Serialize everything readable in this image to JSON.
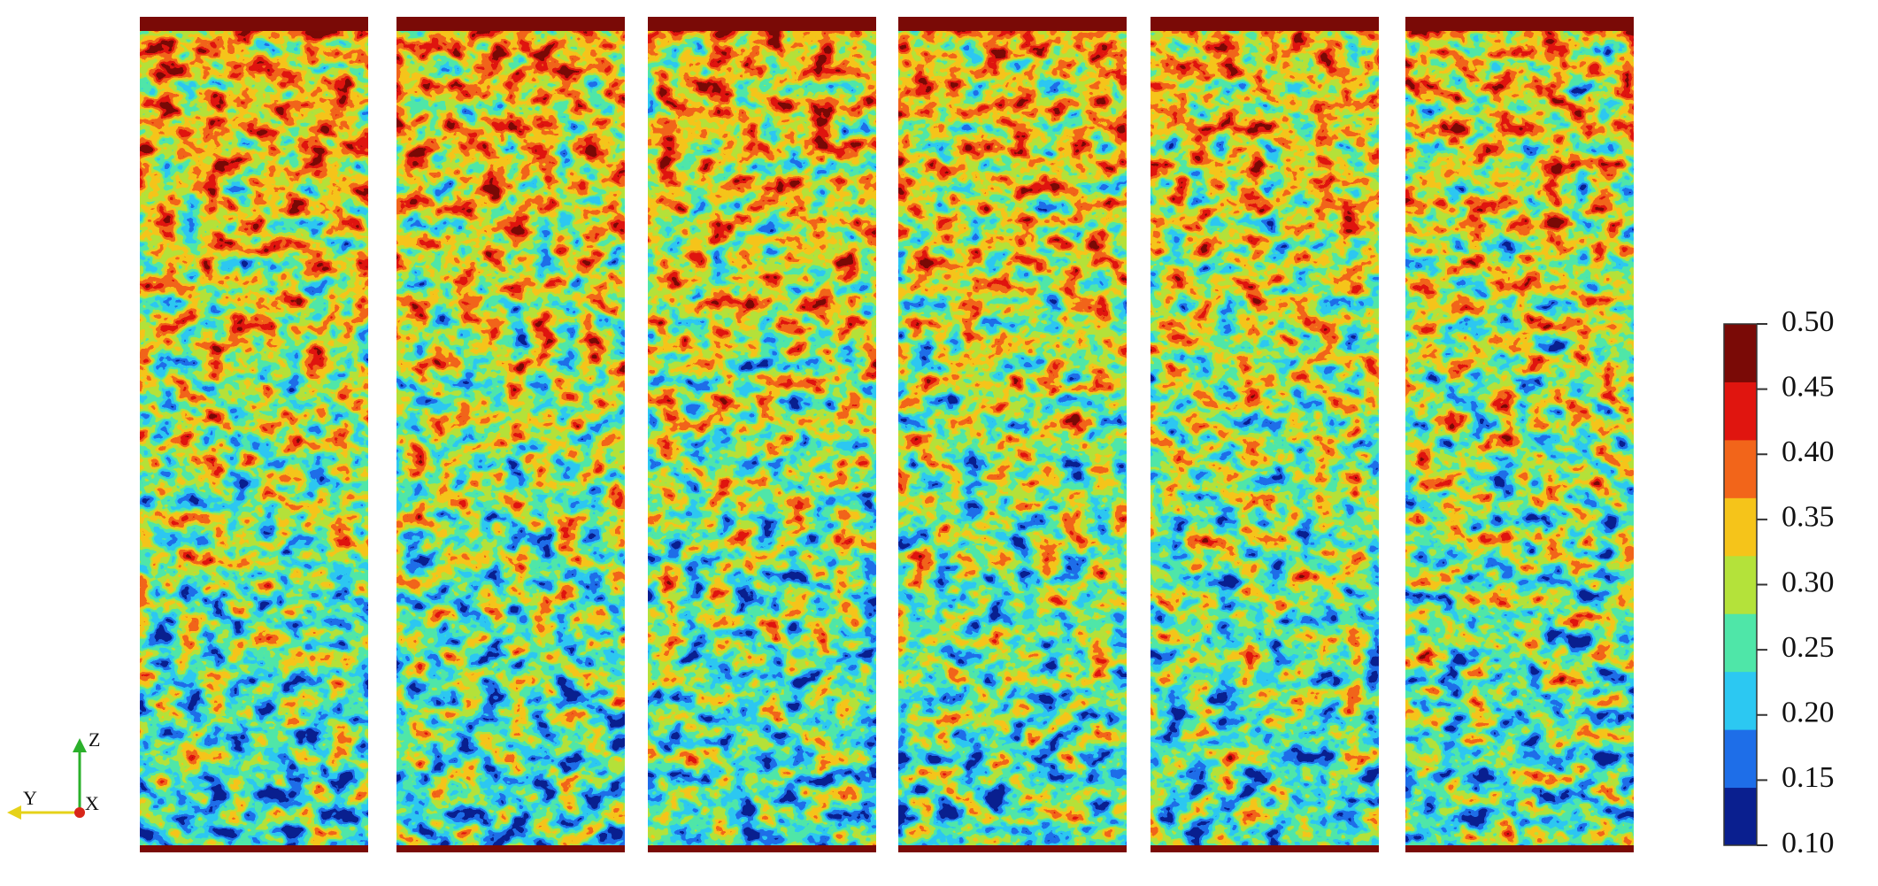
{
  "colorbar": {
    "ticks": [
      {
        "value": 0.1,
        "label": "0.10"
      },
      {
        "value": 0.15,
        "label": "0.15"
      },
      {
        "value": 0.2,
        "label": "0.20"
      },
      {
        "value": 0.25,
        "label": "0.25"
      },
      {
        "value": 0.3,
        "label": "0.30"
      },
      {
        "value": 0.35,
        "label": "0.35"
      },
      {
        "value": 0.4,
        "label": "0.40"
      },
      {
        "value": 0.45,
        "label": "0.45"
      },
      {
        "value": 0.5,
        "label": "0.50"
      }
    ],
    "colors": [
      "#0a1f8f",
      "#1e6ee8",
      "#2cc8f2",
      "#4fe6a8",
      "#b4e23a",
      "#f5c41a",
      "#f2651a",
      "#e0150f",
      "#7a0a06"
    ]
  },
  "axes_triad": {
    "z": "Z",
    "y": "Y",
    "x": "X"
  }
}
